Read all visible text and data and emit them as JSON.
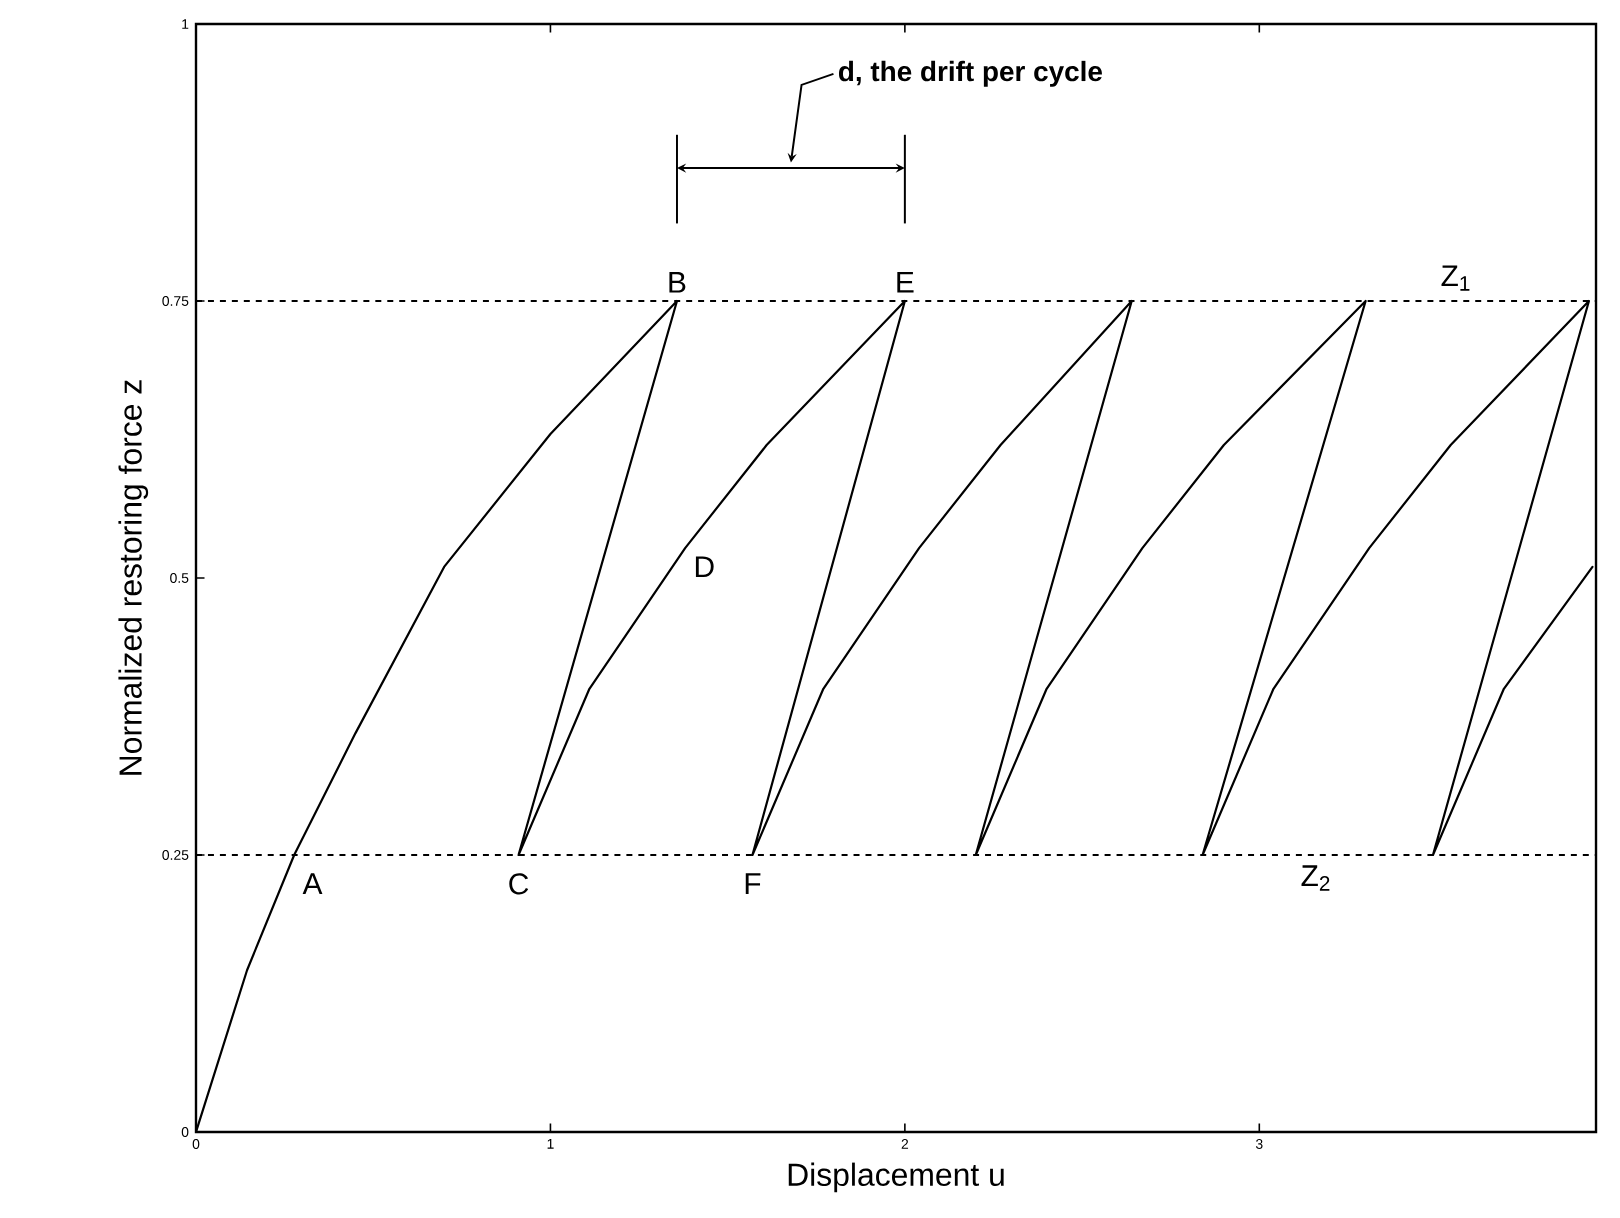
{
  "chart_data": {
    "type": "line",
    "xlabel": "Displacement u",
    "ylabel": "Normalized restoring force z",
    "xlim": [
      0,
      3.95
    ],
    "ylim": [
      0,
      1
    ],
    "xticks": [
      0,
      1,
      2,
      3
    ],
    "yticks": [
      0,
      0.25,
      0.5,
      0.75,
      1
    ],
    "grid": false,
    "marker": "none",
    "line_style": "solid",
    "series": [
      {
        "color": "#000000",
        "x": [
          0,
          0.144,
          0.277,
          0.45,
          0.7,
          1.0,
          1.357,
          0.91,
          1.11,
          1.38,
          1.61,
          2.0,
          1.57,
          1.77,
          2.04,
          2.27,
          2.64,
          2.2,
          2.4,
          2.67,
          2.9,
          3.3,
          2.84,
          3.04,
          3.31,
          3.54,
          3.93,
          3.49,
          3.69,
          3.94
        ],
        "values": [
          0,
          0.146,
          0.25,
          0.36,
          0.51,
          0.63,
          0.75,
          0.25,
          0.4,
          0.527,
          0.62,
          0.75,
          0.25,
          0.4,
          0.527,
          0.62,
          0.75,
          0.25,
          0.4,
          0.527,
          0.62,
          0.75,
          0.25,
          0.4,
          0.527,
          0.62,
          0.75,
          0.25,
          0.4,
          0.51
        ]
      }
    ],
    "ref_lines": [
      {
        "axis": "y",
        "value": 0.75,
        "label": "Z$_{1}$",
        "line_style": "dashed"
      },
      {
        "axis": "y",
        "value": 0.25,
        "label": "Z$_{2}$",
        "line_style": "dashed"
      }
    ],
    "annotations": [
      {
        "text": "A",
        "x": 0.277,
        "y": 0.25
      },
      {
        "text": "B",
        "x": 1.357,
        "y": 0.75
      },
      {
        "text": "C",
        "x": 0.91,
        "y": 0.25
      },
      {
        "text": "D",
        "x": 1.38,
        "y": 0.527
      },
      {
        "text": "E",
        "x": 2.0,
        "y": 0.75
      },
      {
        "text": "F",
        "x": 1.57,
        "y": 0.25
      },
      "d, the drift per cycle"
    ]
  }
}
